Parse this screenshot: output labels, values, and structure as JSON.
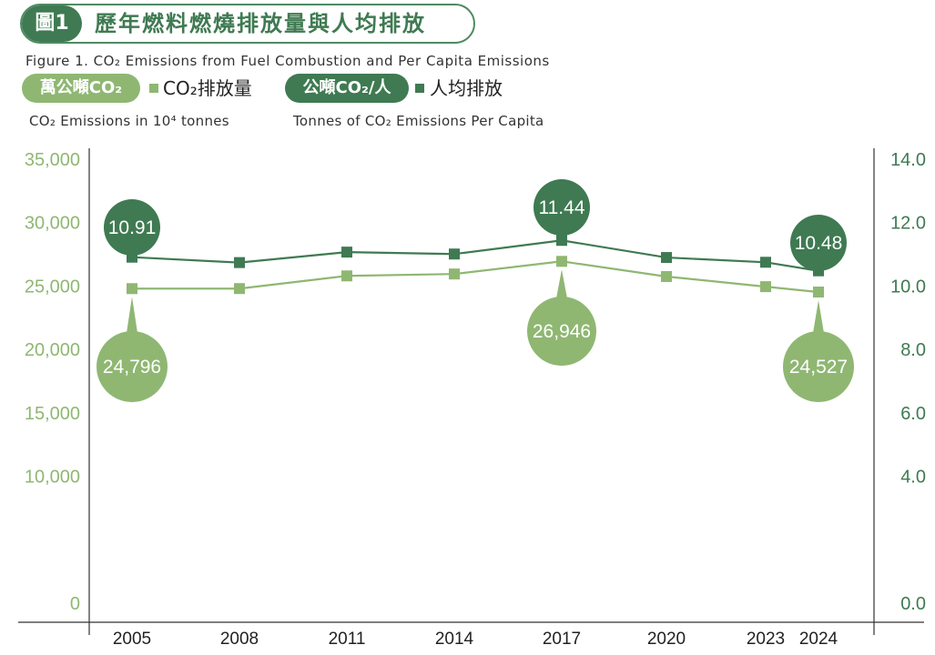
{
  "title": {
    "badge": "圖1",
    "text": "歷年燃料燃燒排放量與人均排放",
    "subtitle_en": "Figure 1. CO₂ Emissions from Fuel Combustion and Per Capita Emissions"
  },
  "legend": {
    "series_a_unit": "萬公噸CO₂",
    "series_a_label": "CO₂排放量",
    "series_a_note": "CO₂ Emissions in 10⁴ tonnes",
    "series_b_unit": "公噸CO₂/人",
    "series_b_label": "人均排放",
    "series_b_note": "Tonnes of CO₂ Emissions Per Capita"
  },
  "colors": {
    "series_a": "#8fb772",
    "series_b": "#3f7a52",
    "axis": "#333333"
  },
  "chart_data": {
    "type": "line",
    "categories": [
      "2005",
      "2008",
      "2011",
      "2014",
      "2017",
      "2020",
      "2023",
      "2024"
    ],
    "series": [
      {
        "name": "CO₂排放量",
        "axis": "left",
        "values": [
          24796,
          24800,
          25800,
          25950,
          26946,
          25750,
          24950,
          24527
        ],
        "labels": [
          {
            "index": 0,
            "text": "24,796"
          },
          {
            "index": 4,
            "text": "26,946"
          },
          {
            "index": 7,
            "text": "24,527"
          }
        ]
      },
      {
        "name": "人均排放",
        "axis": "right",
        "values": [
          10.91,
          10.74,
          11.07,
          11.01,
          11.44,
          10.9,
          10.75,
          10.48
        ],
        "labels": [
          {
            "index": 0,
            "text": "10.91"
          },
          {
            "index": 4,
            "text": "11.44"
          },
          {
            "index": 7,
            "text": "10.48"
          }
        ]
      }
    ],
    "left_axis": {
      "min": 0,
      "max": 35000,
      "ticks": [
        "0",
        "10,000",
        "15,000",
        "20,000",
        "25,000",
        "30,000",
        "35,000"
      ],
      "tick_values": [
        0,
        10000,
        15000,
        20000,
        25000,
        30000,
        35000
      ]
    },
    "right_axis": {
      "min": 0,
      "max": 14,
      "ticks": [
        "0.0",
        "4.0",
        "6.0",
        "8.0",
        "10.0",
        "12.0",
        "14.0"
      ],
      "tick_values": [
        0,
        4,
        6,
        8,
        10,
        12,
        14
      ]
    }
  }
}
